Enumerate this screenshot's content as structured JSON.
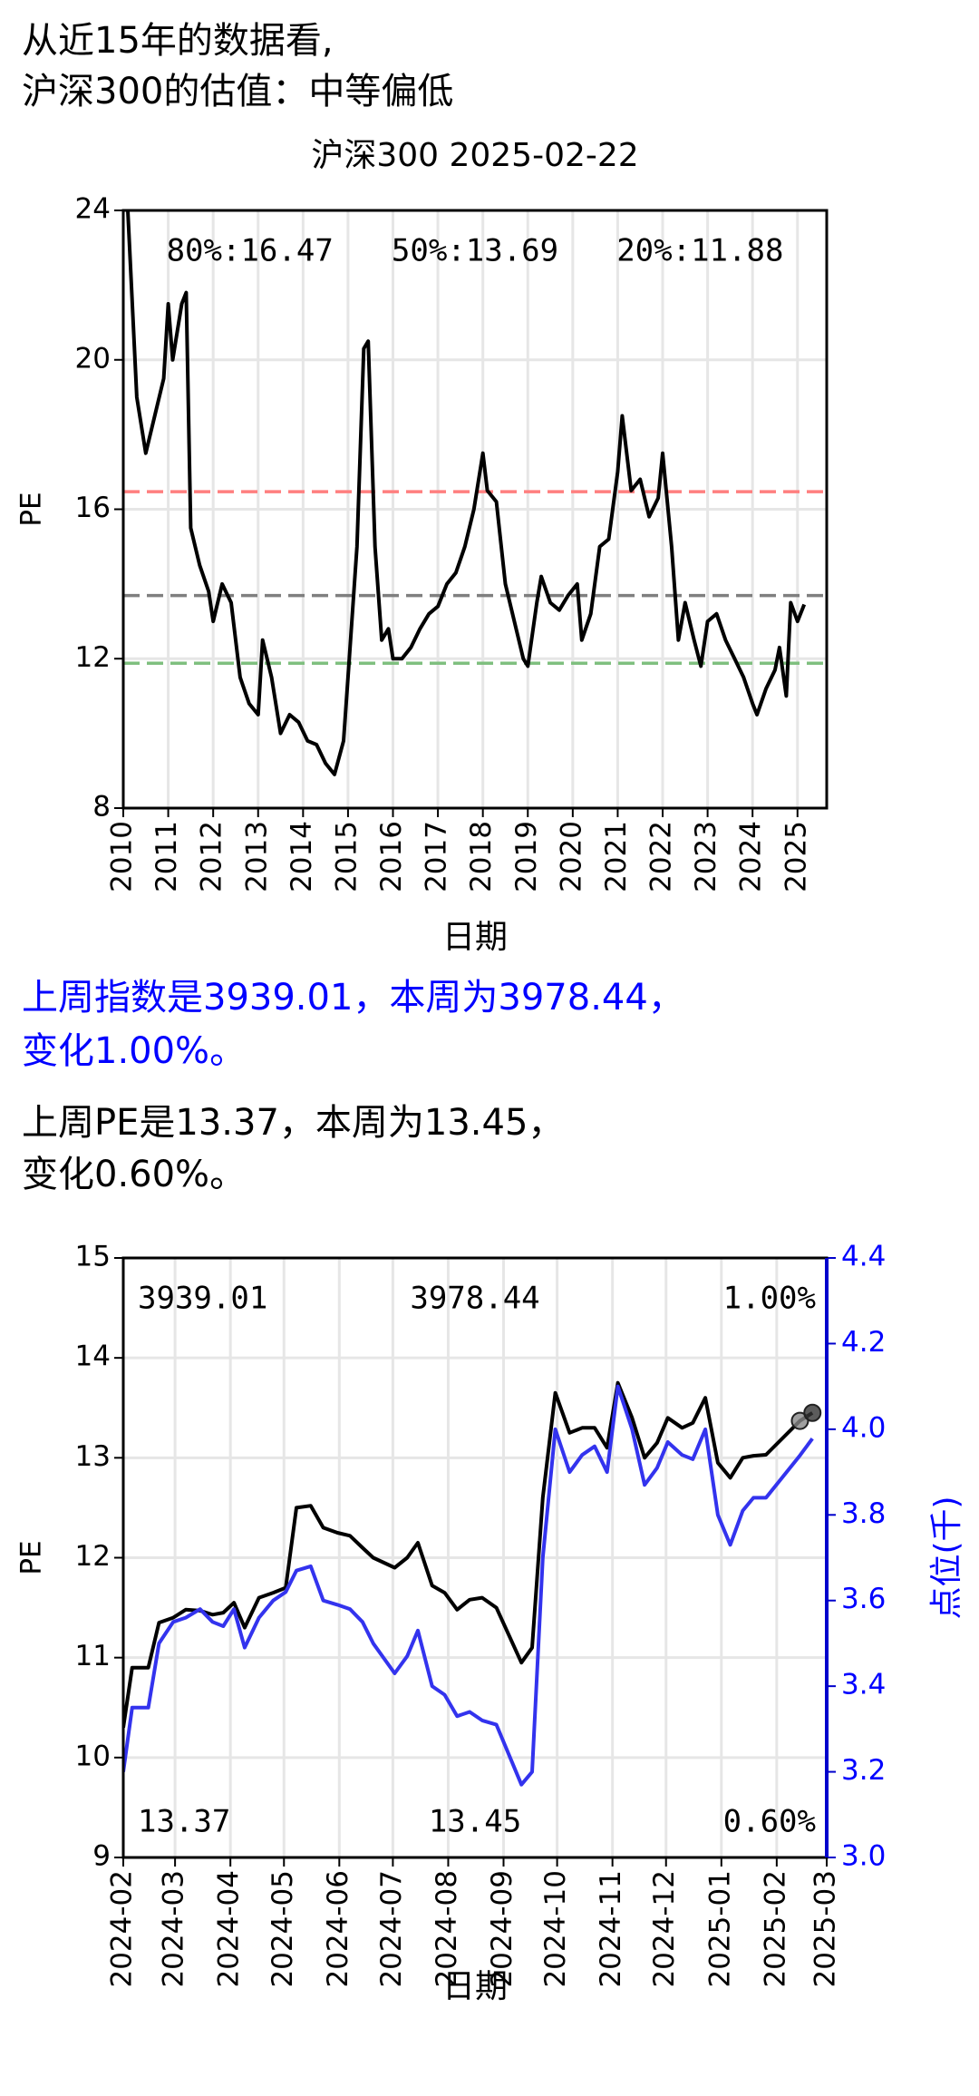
{
  "heading": [
    "从近15年的数据看,",
    "沪深300的估值：中等偏低"
  ],
  "notes": [
    [
      "上周指数是3939.01，本周为3978.44，",
      "变化1.00%。"
    ],
    [
      "上周PE是13.37，本周为13.45，",
      "变化0.60%。"
    ]
  ],
  "chart_data": [
    {
      "type": "line",
      "title": "沪深300 2025-02-22",
      "xlabel": "日期",
      "ylabel": "PE",
      "xlim": [
        2010,
        2025.65
      ],
      "xticks": [
        2010,
        2011,
        2012,
        2013,
        2014,
        2015,
        2016,
        2017,
        2018,
        2019,
        2020,
        2021,
        2022,
        2023,
        2024,
        2025
      ],
      "ylim": [
        8,
        24
      ],
      "yticks": [
        8,
        12,
        16,
        20,
        24
      ],
      "grid": true,
      "x": [
        2010.1,
        2010.3,
        2010.5,
        2010.7,
        2010.9,
        2011.0,
        2011.1,
        2011.3,
        2011.4,
        2011.5,
        2011.7,
        2011.9,
        2012.0,
        2012.2,
        2012.4,
        2012.6,
        2012.8,
        2013.0,
        2013.1,
        2013.3,
        2013.5,
        2013.7,
        2013.9,
        2014.1,
        2014.3,
        2014.5,
        2014.7,
        2014.9,
        2015.0,
        2015.2,
        2015.35,
        2015.45,
        2015.6,
        2015.75,
        2015.9,
        2016.0,
        2016.2,
        2016.4,
        2016.6,
        2016.8,
        2017.0,
        2017.2,
        2017.4,
        2017.6,
        2017.8,
        2018.0,
        2018.1,
        2018.3,
        2018.5,
        2018.7,
        2018.9,
        2019.0,
        2019.2,
        2019.3,
        2019.5,
        2019.7,
        2019.9,
        2020.1,
        2020.2,
        2020.4,
        2020.6,
        2020.8,
        2021.0,
        2021.1,
        2021.3,
        2021.5,
        2021.7,
        2021.9,
        2022.0,
        2022.2,
        2022.35,
        2022.5,
        2022.7,
        2022.85,
        2023.0,
        2023.2,
        2023.4,
        2023.6,
        2023.8,
        2024.0,
        2024.1,
        2024.3,
        2024.5,
        2024.6,
        2024.75,
        2024.85,
        2025.0,
        2025.15
      ],
      "series": [
        {
          "color": "#000000",
          "values": [
            24,
            19,
            17.5,
            18.5,
            19.5,
            21.5,
            20,
            21.5,
            21.8,
            15.5,
            14.5,
            13.8,
            13,
            14,
            13.5,
            11.5,
            10.8,
            10.5,
            12.5,
            11.5,
            10,
            10.5,
            10.3,
            9.8,
            9.7,
            9.2,
            8.9,
            9.8,
            11.5,
            15,
            20.3,
            20.5,
            15,
            12.5,
            12.8,
            12,
            12,
            12.3,
            12.8,
            13.2,
            13.4,
            14,
            14.3,
            15,
            16,
            17.5,
            16.5,
            16.2,
            14,
            13,
            12,
            11.8,
            13.5,
            14.2,
            13.5,
            13.3,
            13.7,
            14,
            12.5,
            13.2,
            15,
            15.2,
            17,
            18.5,
            16.5,
            16.8,
            15.8,
            16.3,
            17.5,
            15,
            12.5,
            13.5,
            12.5,
            11.8,
            13,
            13.2,
            12.5,
            12,
            11.5,
            10.8,
            10.5,
            11.2,
            11.7,
            12.3,
            11,
            13.5,
            13,
            13.45
          ]
        }
      ],
      "hlines": [
        {
          "value": 16.47,
          "label": "80%:16.47",
          "color": "#ff7f7f",
          "label_color": "#ff0000"
        },
        {
          "value": 13.69,
          "label": "50%:13.69",
          "color": "#7f7f7f",
          "label_color": "#000000"
        },
        {
          "value": 11.88,
          "label": "20%:11.88",
          "color": "#7fbf7f",
          "label_color": "#008000"
        }
      ]
    },
    {
      "type": "line",
      "xlabel": "日期",
      "ylabel": "PE",
      "y2label": "点位(千)",
      "xlim": [
        "2024-02",
        "2025-03"
      ],
      "xticks": [
        "2024-02",
        "2024-03",
        "2024-04",
        "2024-05",
        "2024-06",
        "2024-07",
        "2024-08",
        "2024-09",
        "2024-10",
        "2024-11",
        "2024-12",
        "2025-01",
        "2025-02",
        "2025-03"
      ],
      "ylim": [
        9,
        15
      ],
      "yticks": [
        9,
        10,
        11,
        12,
        13,
        14,
        15
      ],
      "y2lim": [
        3,
        4.4
      ],
      "y2ticks": [
        {
          "value": 3,
          "label": "3.0"
        },
        3.2,
        3.4,
        3.6,
        3.8,
        {
          "value": 4,
          "label": "4.0"
        },
        4.2,
        4.4
      ],
      "grid": true,
      "x": [
        "2024-02-01",
        "2024-02-06",
        "2024-02-15",
        "2024-02-21",
        "2024-02-29",
        "2024-03-07",
        "2024-03-15",
        "2024-03-22",
        "2024-03-28",
        "2024-04-03",
        "2024-04-09",
        "2024-04-17",
        "2024-04-25",
        "2024-05-02",
        "2024-05-08",
        "2024-05-16",
        "2024-05-23",
        "2024-05-31",
        "2024-06-07",
        "2024-06-14",
        "2024-06-20",
        "2024-07-02",
        "2024-07-09",
        "2024-07-15",
        "2024-07-23",
        "2024-07-30",
        "2024-08-06",
        "2024-08-13",
        "2024-08-20",
        "2024-08-28",
        "2024-09-11",
        "2024-09-17",
        "2024-09-23",
        "2024-09-30",
        "2024-10-08",
        "2024-10-15",
        "2024-10-22",
        "2024-10-29",
        "2024-11-04",
        "2024-11-12",
        "2024-11-19",
        "2024-11-26",
        "2024-12-02",
        "2024-12-10",
        "2024-12-16",
        "2024-12-23",
        "2024-12-30",
        "2025-01-06",
        "2025-01-13",
        "2025-01-19",
        "2025-01-26",
        "2025-02-14",
        "2025-02-21"
      ],
      "series": [
        {
          "color": "#000000",
          "values": [
            10.3,
            10.9,
            10.9,
            11.35,
            11.4,
            11.48,
            11.47,
            11.43,
            11.45,
            11.55,
            11.3,
            11.6,
            11.65,
            11.7,
            12.5,
            12.52,
            12.3,
            12.25,
            12.22,
            12.1,
            12.0,
            11.9,
            12.0,
            12.15,
            11.72,
            11.65,
            11.48,
            11.58,
            11.6,
            11.5,
            10.95,
            11.1,
            12.6,
            13.65,
            13.25,
            13.3,
            13.3,
            13.1,
            13.75,
            13.4,
            13.0,
            13.15,
            13.4,
            13.3,
            13.35,
            13.6,
            12.95,
            12.8,
            13.0,
            13.02,
            13.03,
            13.37,
            13.45
          ]
        },
        {
          "color": "#3333ee",
          "axis": "y2",
          "values": [
            3.2,
            3.35,
            3.35,
            3.5,
            3.55,
            3.56,
            3.58,
            3.55,
            3.54,
            3.58,
            3.49,
            3.56,
            3.6,
            3.62,
            3.67,
            3.68,
            3.6,
            3.59,
            3.58,
            3.55,
            3.5,
            3.43,
            3.47,
            3.53,
            3.4,
            3.38,
            3.33,
            3.34,
            3.32,
            3.31,
            3.17,
            3.2,
            3.7,
            4.0,
            3.9,
            3.94,
            3.96,
            3.9,
            4.1,
            4.0,
            3.87,
            3.91,
            3.97,
            3.94,
            3.93,
            4.0,
            3.8,
            3.73,
            3.81,
            3.84,
            3.84,
            3.939,
            3.978
          ]
        }
      ],
      "annotations": [
        {
          "text": "3939.01",
          "color": "#7f7fff"
        },
        {
          "text": "3978.44",
          "color": "#0000ff"
        },
        {
          "text": "1.00%",
          "color": "#0000ff"
        },
        {
          "text": "13.37",
          "color": "#808080"
        },
        {
          "text": "13.45",
          "color": "#000000"
        },
        {
          "text": "0.60%",
          "color": "#000000"
        }
      ]
    }
  ]
}
